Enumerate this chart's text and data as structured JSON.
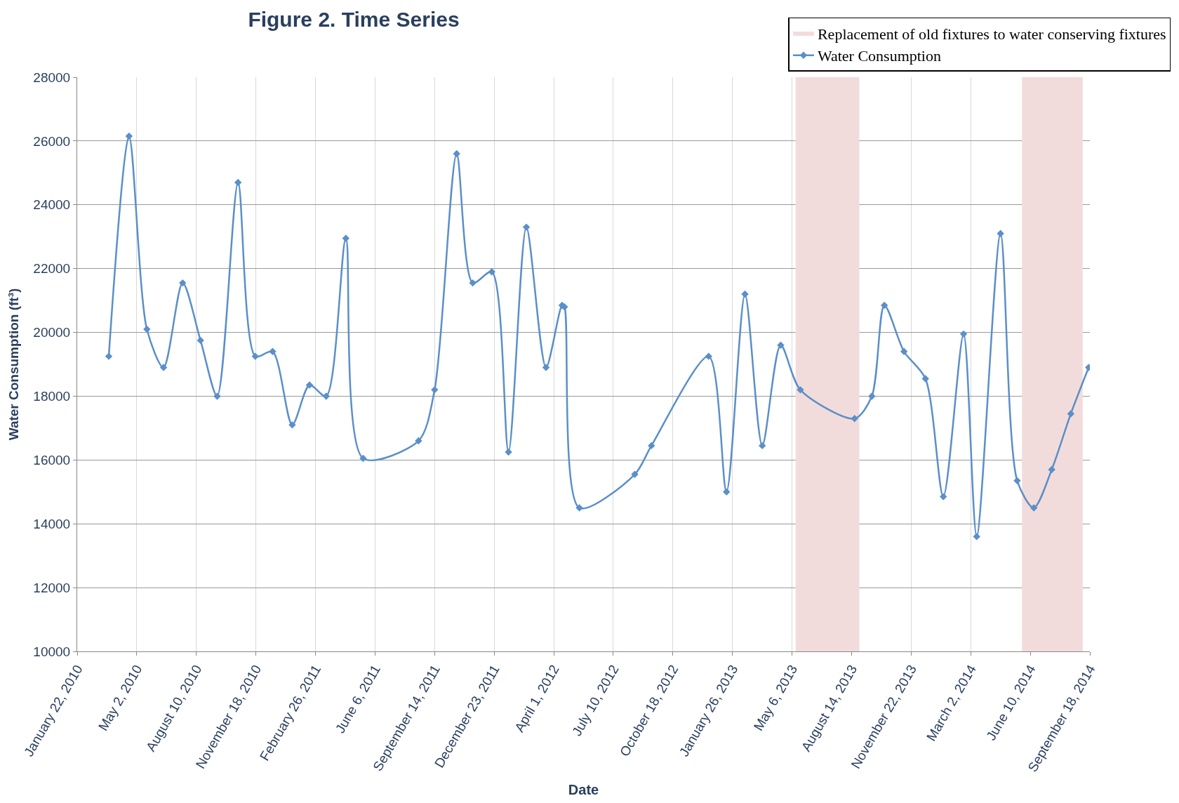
{
  "chart_data": {
    "type": "line",
    "title": "Figure 2. Time Series",
    "xlabel": "Date",
    "ylabel": "Water Consumption (ft³)",
    "x": [
      "2010-03-16",
      "2010-04-19",
      "2010-05-19",
      "2010-06-16",
      "2010-07-18",
      "2010-08-17",
      "2010-09-14",
      "2010-10-19",
      "2010-11-17",
      "2010-12-16",
      "2011-01-18",
      "2011-02-16",
      "2011-03-16",
      "2011-04-18",
      "2011-05-17",
      "2011-08-18",
      "2011-09-14",
      "2011-10-21",
      "2011-11-17",
      "2011-12-19",
      "2012-01-16",
      "2012-02-15",
      "2012-03-19",
      "2012-04-15",
      "2012-04-19",
      "2012-05-14",
      "2012-08-15",
      "2012-09-12",
      "2012-12-17",
      "2013-01-16",
      "2013-02-16",
      "2013-03-17",
      "2013-04-17",
      "2013-05-20",
      "2013-08-19",
      "2013-09-17",
      "2013-10-08",
      "2013-11-10",
      "2013-12-16",
      "2014-01-15",
      "2014-02-18",
      "2014-03-12",
      "2014-04-21",
      "2014-05-19",
      "2014-06-16",
      "2014-07-16",
      "2014-08-17",
      "2014-09-16"
    ],
    "series": [
      {
        "name": "Water Consumption",
        "color": "#5b8fc9",
        "values": [
          19250,
          26150,
          20100,
          18900,
          21550,
          19750,
          18000,
          24700,
          19250,
          19400,
          17100,
          18350,
          18000,
          22950,
          16050,
          16600,
          18200,
          25600,
          21550,
          21900,
          16250,
          23300,
          18900,
          20850,
          20800,
          14500,
          15550,
          16450,
          19250,
          15000,
          21200,
          16450,
          19600,
          18200,
          17300,
          18000,
          20850,
          19400,
          18550,
          14850,
          19950,
          13600,
          23100,
          15350,
          14500,
          15700,
          17450,
          18900
        ]
      }
    ],
    "bands": [
      {
        "axis": "x",
        "from": "2013-05-12",
        "to": "2013-08-27",
        "label": "Replacement of old fixtures to water conserving fixtures",
        "color": "#f2dcdb"
      },
      {
        "axis": "x",
        "from": "2014-05-27",
        "to": "2014-09-06",
        "color": "#f2dcdb"
      }
    ],
    "xlim": [
      "2010-01-22",
      "2014-09-18"
    ],
    "xticks": [
      {
        "value": "2010-01-22",
        "label": "January 22, 2010"
      },
      {
        "value": "2010-05-02",
        "label": "May 2, 2010"
      },
      {
        "value": "2010-08-10",
        "label": "August 10, 2010"
      },
      {
        "value": "2010-11-18",
        "label": "November 18, 2010"
      },
      {
        "value": "2011-02-26",
        "label": "February 26, 2011"
      },
      {
        "value": "2011-06-06",
        "label": "June 6, 2011"
      },
      {
        "value": "2011-09-14",
        "label": "September 14, 2011"
      },
      {
        "value": "2011-12-23",
        "label": "December 23, 2011"
      },
      {
        "value": "2012-04-01",
        "label": "April 1, 2012"
      },
      {
        "value": "2012-07-10",
        "label": "July 10, 2012"
      },
      {
        "value": "2012-10-18",
        "label": "October 18, 2012"
      },
      {
        "value": "2013-01-26",
        "label": "January 26, 2013"
      },
      {
        "value": "2013-05-06",
        "label": "May 6, 2013"
      },
      {
        "value": "2013-08-14",
        "label": "August 14, 2013"
      },
      {
        "value": "2013-11-22",
        "label": "November 22, 2013"
      },
      {
        "value": "2014-03-02",
        "label": "March 2, 2014"
      },
      {
        "value": "2014-06-10",
        "label": "June 10, 2014"
      },
      {
        "value": "2014-09-18",
        "label": "September 18, 2014"
      }
    ],
    "ylim": [
      10000,
      28000
    ],
    "yticks": [
      10000,
      12000,
      14000,
      16000,
      18000,
      20000,
      22000,
      24000,
      26000,
      28000
    ],
    "grid": true,
    "legend": "top right",
    "marker": "diamond",
    "line_style": "solid"
  }
}
